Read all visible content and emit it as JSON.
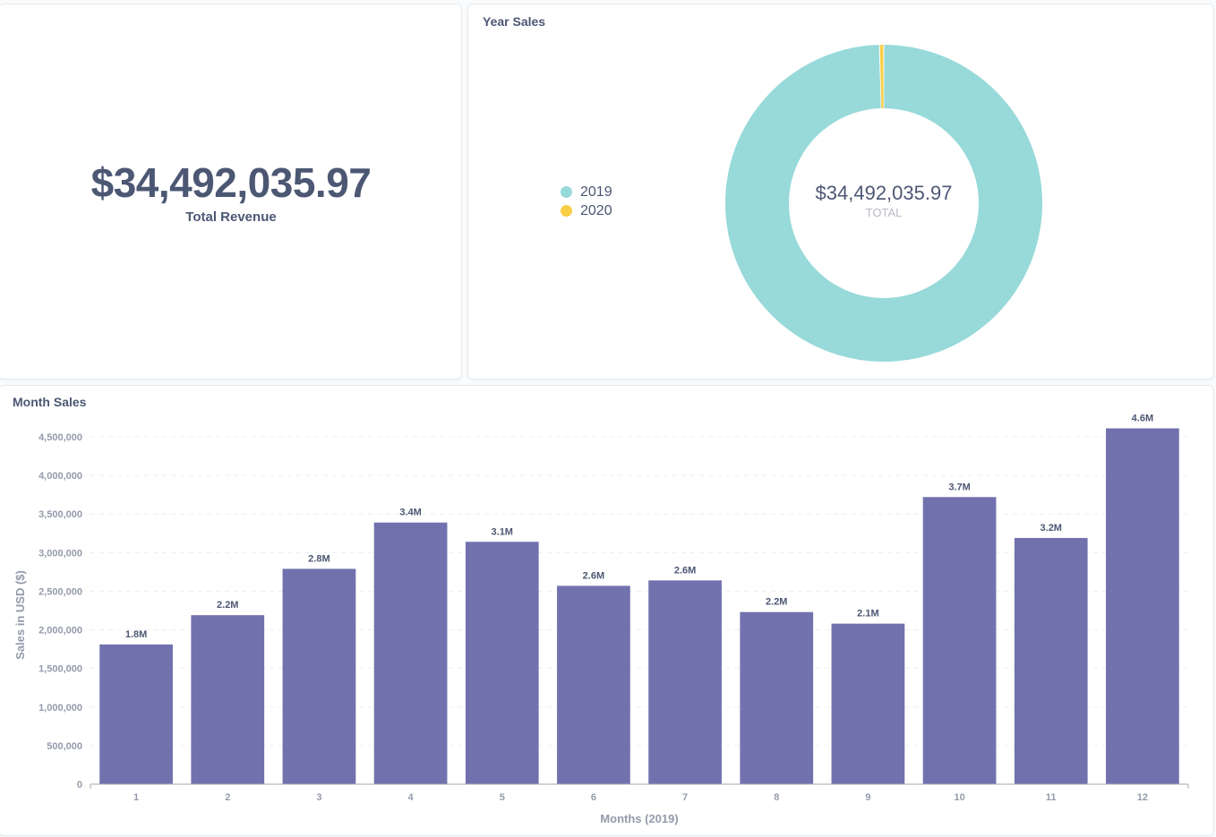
{
  "revenue_card": {
    "value": "$34,492,035.97",
    "label": "Total Revenue"
  },
  "year_card": {
    "title": "Year Sales",
    "total_value": "$34,492,035.97",
    "total_label": "TOTAL",
    "legend": [
      {
        "label": "2019",
        "color": "#98d9d9"
      },
      {
        "label": "2020",
        "color": "#f9cf48"
      }
    ]
  },
  "month_card": {
    "title": "Month Sales"
  },
  "chart_data": [
    {
      "type": "pie",
      "title": "Year Sales",
      "categories": [
        "2019",
        "2020"
      ],
      "values": [
        34340000,
        152035.97
      ],
      "total": 34492035.97,
      "center_value": "$34,492,035.97",
      "center_label": "TOTAL",
      "colors": [
        "#98d9d9",
        "#f9cf48"
      ],
      "legend_position": "left"
    },
    {
      "type": "bar",
      "title": "Month Sales",
      "xlabel": "Months (2019)",
      "ylabel": "Sales in USD ($)",
      "categories": [
        "1",
        "2",
        "3",
        "4",
        "5",
        "6",
        "7",
        "8",
        "9",
        "10",
        "11",
        "12"
      ],
      "values": [
        1810000,
        2190000,
        2790000,
        3390000,
        3140000,
        2570000,
        2640000,
        2230000,
        2080000,
        3720000,
        3190000,
        4610000
      ],
      "data_labels": [
        "1.8M",
        "2.2M",
        "2.8M",
        "3.4M",
        "3.1M",
        "2.6M",
        "2.6M",
        "2.2M",
        "2.1M",
        "3.7M",
        "3.2M",
        "4.6M"
      ],
      "yticks": [
        0,
        500000,
        1000000,
        1500000,
        2000000,
        2500000,
        3000000,
        3500000,
        4000000,
        4500000
      ],
      "ytick_labels": [
        "0",
        "500,000",
        "1,000,000",
        "1,500,000",
        "2,000,000",
        "2,500,000",
        "3,000,000",
        "3,500,000",
        "4,000,000",
        "4,500,000"
      ],
      "ylim": [
        0,
        4500000
      ],
      "grid": true,
      "color": "#7172ad"
    }
  ]
}
